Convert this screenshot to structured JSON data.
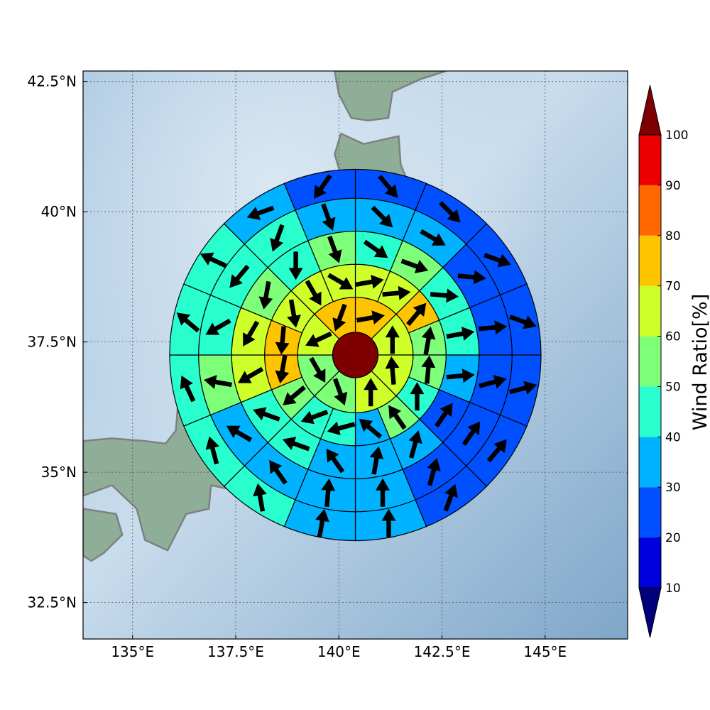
{
  "chart_data": {
    "type": "polar-sector-map",
    "map": {
      "lon_range": [
        133.8,
        147.0
      ],
      "lat_range": [
        31.8,
        42.7
      ],
      "x_ticks": [
        {
          "value": 135.0,
          "label": "135°E"
        },
        {
          "value": 137.5,
          "label": "137.5°E"
        },
        {
          "value": 140.0,
          "label": "140°E"
        },
        {
          "value": 142.5,
          "label": "142.5°E"
        },
        {
          "value": 145.0,
          "label": "145°E"
        }
      ],
      "y_ticks": [
        {
          "value": 32.5,
          "label": "32.5°N"
        },
        {
          "value": 35.0,
          "label": "35°N"
        },
        {
          "value": 37.5,
          "label": "37.5°N"
        },
        {
          "value": 40.0,
          "label": "40°N"
        },
        {
          "value": 42.5,
          "label": "42.5°N"
        }
      ],
      "grid": true,
      "ocean_color": "#8fb4d4",
      "land_color": "#8fae98",
      "coast_color": "#808080"
    },
    "polar_grid": {
      "center": [
        140.4,
        37.25
      ],
      "ring_radii_deg": [
        0.55,
        1.4,
        2.2,
        3.0,
        3.8,
        4.5
      ],
      "sectors_per_ring": [
        1,
        8,
        16,
        16,
        16,
        16
      ],
      "center_value": 100
    },
    "ring_values": [
      [
        70,
        60,
        60,
        60,
        50,
        50,
        60,
        70
      ],
      [
        60,
        60,
        70,
        50,
        50,
        40,
        50,
        30,
        40,
        40,
        50,
        70,
        70,
        60,
        60,
        60
      ],
      [
        40,
        50,
        40,
        40,
        30,
        20,
        30,
        30,
        30,
        40,
        40,
        60,
        60,
        50,
        40,
        50
      ],
      [
        30,
        30,
        20,
        20,
        20,
        20,
        20,
        30,
        30,
        30,
        30,
        50,
        40,
        40,
        40,
        30
      ],
      [
        20,
        20,
        20,
        20,
        20,
        20,
        20,
        30,
        30,
        40,
        40,
        40,
        40,
        40,
        30,
        20
      ]
    ],
    "ring_angles_deg": [
      [
        0,
        45,
        90,
        135,
        180,
        225,
        270,
        315
      ],
      [
        168.75,
        146.25,
        123.75,
        101.25,
        78.75,
        56.25,
        33.75,
        11.25,
        348.75,
        326.25,
        303.75,
        281.25,
        258.75,
        236.25,
        213.75,
        191.25
      ]
    ],
    "arrow_directions_deg": [
      [
        80,
        0,
        355,
        0,
        160,
        150,
        245,
        200
      ],
      [
        80,
        85,
        40,
        10,
        5,
        0,
        325,
        310,
        255,
        250,
        230,
        190,
        185,
        170,
        150,
        120
      ],
      [
        125,
        110,
        95,
        80,
        85,
        35,
        15,
        10,
        325,
        290,
        290,
        240,
        210,
        190,
        180,
        160
      ],
      [
        135,
        120,
        95,
        85,
        75,
        35,
        15,
        0,
        5,
        325,
        300,
        280,
        240,
        220,
        200,
        160
      ],
      [
        140,
        135,
        110,
        110,
        75,
        40,
        20,
        0,
        10,
        350,
        345,
        335,
        310,
        295,
        250,
        215
      ]
    ],
    "colorbar": {
      "label": "Wind Ratio[%]",
      "ticks": [
        10,
        20,
        30,
        40,
        50,
        60,
        70,
        80,
        90,
        100
      ],
      "levels": [
        0,
        10,
        20,
        30,
        40,
        50,
        60,
        70,
        80,
        90,
        100,
        110
      ],
      "colors": [
        "#00007f",
        "#0000dd",
        "#0050ff",
        "#00b2ff",
        "#29ffce",
        "#7dff7a",
        "#ceff29",
        "#ffc400",
        "#ff6800",
        "#ee0000",
        "#7f0000"
      ]
    }
  }
}
